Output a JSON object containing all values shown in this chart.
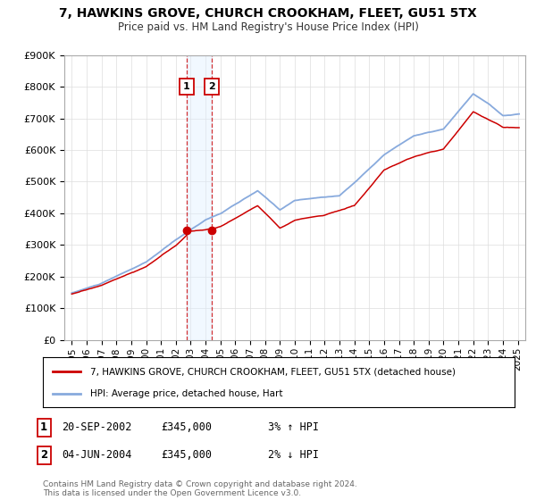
{
  "title": "7, HAWKINS GROVE, CHURCH CROOKHAM, FLEET, GU51 5TX",
  "subtitle": "Price paid vs. HM Land Registry's House Price Index (HPI)",
  "legend_line1": "7, HAWKINS GROVE, CHURCH CROOKHAM, FLEET, GU51 5TX (detached house)",
  "legend_line2": "HPI: Average price, detached house, Hart",
  "transaction1_date": "20-SEP-2002",
  "transaction1_price": "£345,000",
  "transaction1_hpi": "3% ↑ HPI",
  "transaction1_year": 2002.72,
  "transaction2_date": "04-JUN-2004",
  "transaction2_price": "£345,000",
  "transaction2_hpi": "2% ↓ HPI",
  "transaction2_year": 2004.42,
  "footer": "Contains HM Land Registry data © Crown copyright and database right 2024.\nThis data is licensed under the Open Government Licence v3.0.",
  "red_color": "#cc0000",
  "blue_color": "#88aadd",
  "shade_color": "#ddeeff",
  "ylim": [
    0,
    900000
  ],
  "xlim_start": 1994.5,
  "xlim_end": 2025.5
}
